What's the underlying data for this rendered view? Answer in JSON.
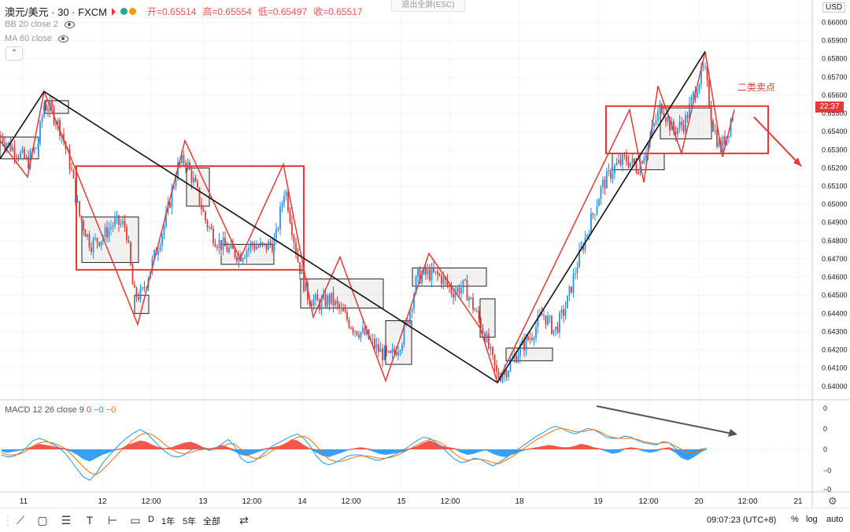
{
  "header": {
    "symbol": "澳元/美元 · 30 · FXCM",
    "open": "开=0.65514",
    "high": "高=0.65554",
    "low": "低=0.65497",
    "close": "收=0.65517"
  },
  "indicators": {
    "bb": "BB 20 close 2",
    "ma": "MA 60 close"
  },
  "esc_hint": "退出全屏(ESC)",
  "currency": "USD",
  "annotation": "二类卖点",
  "price_badge": "22:37",
  "macd": {
    "name": "MACD 12 26 close 9",
    "v1": "0",
    "v2": "−0",
    "v3": "−0",
    "axis_labels": [
      "0",
      "0",
      "0",
      "−0",
      "−0"
    ]
  },
  "colors": {
    "up": "#2196f3",
    "down": "#ff6d00",
    "bull_hist": "#f44336",
    "bear_hist": "#2196f3",
    "accent_red": "#e53935"
  },
  "toolbar": {
    "timeframes": [
      "D",
      "1年",
      "5年",
      "全部"
    ],
    "clock": "09:07:23 (UTC+8)",
    "percent": "%",
    "log": "log",
    "auto": "auto"
  },
  "chart_data": {
    "type": "candlestick",
    "price_axis": {
      "ylim": [
        0.6396,
        0.6608
      ],
      "tick_labels": [
        "0.66000",
        "0.65900",
        "0.65800",
        "0.65700",
        "0.65600",
        "0.65500",
        "0.65400",
        "0.65300",
        "0.65200",
        "0.65100",
        "0.65000",
        "0.64900",
        "0.64800",
        "0.64700",
        "0.64600",
        "0.64500",
        "0.64400",
        "0.64300",
        "0.64200",
        "0.64100",
        "0.64000"
      ]
    },
    "x_tick_labels": [
      "11",
      "12",
      "12:00",
      "13",
      "12:00",
      "14",
      "12:00",
      "15",
      "12:00",
      "18",
      "19",
      "12:00",
      "20",
      "12:00",
      "21"
    ],
    "close_path": [
      [
        0,
        0.6538
      ],
      [
        10,
        0.6533
      ],
      [
        22,
        0.6529
      ],
      [
        35,
        0.6523
      ],
      [
        48,
        0.6533
      ],
      [
        56,
        0.6555
      ],
      [
        65,
        0.6552
      ],
      [
        78,
        0.654
      ],
      [
        90,
        0.652
      ],
      [
        100,
        0.6495
      ],
      [
        115,
        0.6478
      ],
      [
        130,
        0.6482
      ],
      [
        145,
        0.649
      ],
      [
        160,
        0.6488
      ],
      [
        170,
        0.645
      ],
      [
        180,
        0.645
      ],
      [
        195,
        0.647
      ],
      [
        210,
        0.649
      ],
      [
        225,
        0.652
      ],
      [
        235,
        0.6525
      ],
      [
        248,
        0.651
      ],
      [
        262,
        0.649
      ],
      [
        275,
        0.648
      ],
      [
        290,
        0.6475
      ],
      [
        305,
        0.6472
      ],
      [
        320,
        0.6478
      ],
      [
        335,
        0.6476
      ],
      [
        350,
        0.648
      ],
      [
        362,
        0.651
      ],
      [
        370,
        0.649
      ],
      [
        378,
        0.647
      ],
      [
        390,
        0.645
      ],
      [
        405,
        0.6445
      ],
      [
        420,
        0.6448
      ],
      [
        435,
        0.644
      ],
      [
        450,
        0.6432
      ],
      [
        465,
        0.6428
      ],
      [
        480,
        0.642
      ],
      [
        495,
        0.6415
      ],
      [
        510,
        0.6425
      ],
      [
        520,
        0.644
      ],
      [
        530,
        0.646
      ],
      [
        545,
        0.6462
      ],
      [
        560,
        0.646
      ],
      [
        575,
        0.6452
      ],
      [
        590,
        0.6455
      ],
      [
        605,
        0.644
      ],
      [
        615,
        0.643
      ],
      [
        625,
        0.6415
      ],
      [
        632,
        0.6405
      ],
      [
        645,
        0.641
      ],
      [
        660,
        0.642
      ],
      [
        675,
        0.6428
      ],
      [
        690,
        0.644
      ],
      [
        705,
        0.643
      ],
      [
        720,
        0.6445
      ],
      [
        735,
        0.647
      ],
      [
        750,
        0.649
      ],
      [
        765,
        0.651
      ],
      [
        780,
        0.652
      ],
      [
        795,
        0.6525
      ],
      [
        810,
        0.652
      ],
      [
        825,
        0.6535
      ],
      [
        840,
        0.6555
      ],
      [
        855,
        0.654
      ],
      [
        870,
        0.6545
      ],
      [
        885,
        0.6565
      ],
      [
        895,
        0.6575
      ],
      [
        905,
        0.6545
      ],
      [
        915,
        0.653
      ],
      [
        925,
        0.654
      ],
      [
        932,
        0.6552
      ]
    ],
    "drawings": {
      "black_zigzag": [
        [
          0,
          0.6525
        ],
        [
          56,
          0.6562
        ],
        [
          632,
          0.6402
        ],
        [
          896,
          0.6584
        ]
      ],
      "red_zigzag": [
        [
          0,
          0.6535
        ],
        [
          35,
          0.6515
        ],
        [
          56,
          0.6562
        ],
        [
          100,
          0.6515
        ],
        [
          175,
          0.6434
        ],
        [
          235,
          0.6535
        ],
        [
          305,
          0.647
        ],
        [
          360,
          0.6522
        ],
        [
          398,
          0.6438
        ],
        [
          432,
          0.6471
        ],
        [
          490,
          0.6403
        ],
        [
          545,
          0.6473
        ],
        [
          610,
          0.6432
        ],
        [
          632,
          0.6402
        ],
        [
          800,
          0.6552
        ],
        [
          818,
          0.6512
        ],
        [
          836,
          0.6565
        ],
        [
          866,
          0.6528
        ],
        [
          896,
          0.6584
        ],
        [
          918,
          0.6526
        ],
        [
          933,
          0.6552
        ]
      ],
      "red_boxes": [
        {
          "x0": 97,
          "x1": 386,
          "top": 0.6521,
          "bottom": 0.6464
        },
        {
          "x0": 770,
          "x1": 976,
          "top": 0.6554,
          "bottom": 0.6528
        }
      ],
      "grey_boxes": [
        {
          "x0": 0,
          "x1": 49,
          "top": 0.6537,
          "bottom": 0.6525
        },
        {
          "x0": 57,
          "x1": 87,
          "top": 0.6557,
          "bottom": 0.655
        },
        {
          "x0": 104,
          "x1": 176,
          "top": 0.6493,
          "bottom": 0.6468
        },
        {
          "x0": 171,
          "x1": 189,
          "top": 0.645,
          "bottom": 0.644
        },
        {
          "x0": 237,
          "x1": 266,
          "top": 0.652,
          "bottom": 0.6499
        },
        {
          "x0": 281,
          "x1": 348,
          "top": 0.6478,
          "bottom": 0.6467
        },
        {
          "x0": 382,
          "x1": 487,
          "top": 0.6459,
          "bottom": 0.6443
        },
        {
          "x0": 490,
          "x1": 523,
          "top": 0.6436,
          "bottom": 0.6412
        },
        {
          "x0": 524,
          "x1": 618,
          "top": 0.6465,
          "bottom": 0.6455
        },
        {
          "x0": 610,
          "x1": 629,
          "top": 0.6448,
          "bottom": 0.6427
        },
        {
          "x0": 643,
          "x1": 702,
          "top": 0.6421,
          "bottom": 0.6414
        },
        {
          "x0": 778,
          "x1": 844,
          "top": 0.6528,
          "bottom": 0.6519
        },
        {
          "x0": 839,
          "x1": 904,
          "top": 0.6553,
          "bottom": 0.6536
        }
      ],
      "arrow_main": [
        [
          958,
          0.6548
        ],
        [
          1018,
          0.6521
        ]
      ],
      "arrow_macd_start": [
        758,
        0
      ],
      "arrow_macd_end": [
        937,
        0
      ]
    },
    "macd_series": {
      "x_step": 8,
      "hist": [
        -0.2,
        -0.3,
        -0.2,
        -0.1,
        0.1,
        0.3,
        0.5,
        0.4,
        0.3,
        0.2,
        0.1,
        -0.2,
        -0.5,
        -0.9,
        -1.1,
        -0.8,
        -0.5,
        -0.3,
        -0.1,
        0.1,
        0.4,
        0.6,
        0.8,
        0.7,
        0.4,
        0.2,
        0.1,
        0.2,
        0.4,
        0.6,
        0.7,
        0.5,
        0.2,
        0.1,
        0.2,
        0.4,
        0.2,
        -0.2,
        -0.5,
        -0.6,
        -0.4,
        -0.2,
        0.1,
        0.2,
        0.3,
        0.5,
        0.9,
        0.8,
        0.4,
        0.1,
        -0.3,
        -0.6,
        -0.7,
        -0.5,
        -0.3,
        -0.1,
        0.1,
        0.2,
        0.1,
        -0.2,
        -0.4,
        -0.5,
        -0.4,
        -0.3,
        -0.2,
        0.1,
        0.3,
        0.6,
        0.8,
        0.6,
        0.3,
        0.2,
        0.1,
        -0.3,
        -0.5,
        -0.4,
        -0.2,
        -0.1,
        -0.4,
        -0.6,
        -0.7,
        -0.5,
        -0.3,
        -0.1,
        0.1,
        0.2,
        0.3,
        0.4,
        0.3,
        0.2,
        0.2,
        0.3,
        0.5,
        0.4,
        0.2,
        0.1,
        -0.2,
        -0.4,
        -0.3,
        0.1,
        0.2,
        0.1,
        -0.2,
        -0.3,
        -0.2,
        0.1,
        0.2,
        -0.3,
        -0.8,
        -1.0,
        -0.7,
        -0.3,
        0.0
      ],
      "macd": [
        -0.5,
        -0.7,
        -0.6,
        -0.3,
        0.2,
        0.8,
        1.0,
        0.8,
        0.5,
        0.2,
        -0.3,
        -1.0,
        -1.8,
        -2.5,
        -2.8,
        -2.2,
        -1.3,
        -0.6,
        0.0,
        0.6,
        1.1,
        1.5,
        1.8,
        1.5,
        0.9,
        0.3,
        -0.2,
        -0.6,
        -0.7,
        -0.5,
        -0.1,
        0.2,
        0.1,
        -0.1,
        0.1,
        0.5,
        0.9,
        0.3,
        -0.8,
        -1.2,
        -1.1,
        -0.7,
        -0.2,
        0.3,
        0.6,
        0.9,
        1.2,
        1.4,
        1.0,
        0.3,
        -0.6,
        -1.2,
        -1.4,
        -1.2,
        -0.9,
        -0.6,
        -0.5,
        -0.5,
        -0.7,
        -0.9,
        -1.0,
        -0.8,
        -0.6,
        -0.3,
        0.0,
        0.4,
        0.8,
        1.1,
        1.0,
        0.6,
        0.2,
        -0.4,
        -0.9,
        -1.2,
        -1.1,
        -0.8,
        -0.9,
        -1.2,
        -1.5,
        -1.2,
        -0.8,
        -0.4,
        0.0,
        0.4,
        0.8,
        1.2,
        1.5,
        1.9,
        2.1,
        1.9,
        1.6,
        1.4,
        1.6,
        1.9,
        1.8,
        1.5,
        1.1,
        1.0,
        1.0,
        1.2,
        1.1,
        0.8,
        0.6,
        0.5,
        0.4,
        0.7,
        0.6,
        0.1,
        -0.4,
        -0.6,
        -0.2,
        0.0,
        0.1
      ],
      "signal": [
        -0.3,
        -0.5,
        -0.5,
        -0.4,
        -0.1,
        0.3,
        0.6,
        0.7,
        0.6,
        0.4,
        0.1,
        -0.4,
        -1.0,
        -1.6,
        -2.1,
        -2.3,
        -1.9,
        -1.3,
        -0.7,
        -0.1,
        0.4,
        0.9,
        1.3,
        1.5,
        1.3,
        0.9,
        0.4,
        0.0,
        -0.3,
        -0.4,
        -0.3,
        -0.1,
        0.0,
        0.0,
        0.0,
        0.2,
        0.5,
        0.5,
        0.0,
        -0.5,
        -0.8,
        -0.8,
        -0.5,
        -0.1,
        0.2,
        0.5,
        0.8,
        1.1,
        1.2,
        0.9,
        0.3,
        -0.4,
        -0.9,
        -1.1,
        -1.1,
        -0.9,
        -0.7,
        -0.6,
        -0.6,
        -0.7,
        -0.8,
        -0.8,
        -0.7,
        -0.5,
        -0.2,
        0.1,
        0.4,
        0.7,
        0.9,
        0.8,
        0.5,
        0.1,
        -0.4,
        -0.8,
        -1.0,
        -0.9,
        -0.9,
        -1.0,
        -1.2,
        -1.3,
        -1.0,
        -0.7,
        -0.3,
        0.1,
        0.5,
        0.9,
        1.2,
        1.5,
        1.8,
        1.9,
        1.8,
        1.6,
        1.6,
        1.7,
        1.8,
        1.6,
        1.3,
        1.1,
        1.0,
        1.0,
        1.0,
        0.9,
        0.7,
        0.6,
        0.5,
        0.6,
        0.6,
        0.3,
        0.0,
        -0.3,
        -0.3,
        -0.1,
        0.0
      ]
    }
  }
}
